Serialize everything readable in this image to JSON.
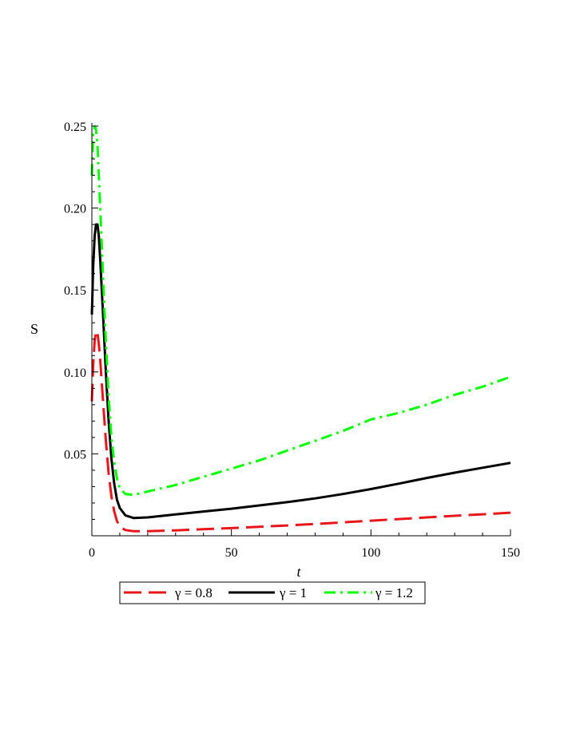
{
  "chart_data": {
    "type": "line",
    "title": "",
    "xlabel": "t",
    "ylabel": "S",
    "xlim": [
      0,
      150
    ],
    "ylim": [
      0,
      0.25
    ],
    "xticks": [
      0,
      50,
      100,
      150
    ],
    "xtick_labels": [
      "0",
      "50",
      "100",
      "150"
    ],
    "yticks": [
      0.05,
      0.1,
      0.15,
      0.2,
      0.25
    ],
    "ytick_labels": [
      "0.05",
      "0.10",
      "0.15",
      "0.20",
      "0.25"
    ],
    "grid": false,
    "legend_position": "bottom",
    "series": [
      {
        "name": "γ = 0.8",
        "color": "#e8161b",
        "dash": "dashed",
        "x": [
          0,
          0.5,
          1,
          1.5,
          2,
          2.5,
          3,
          4,
          5,
          6,
          7,
          8,
          9,
          10,
          12,
          15,
          20,
          30,
          40,
          50,
          60,
          70,
          80,
          90,
          100,
          110,
          120,
          130,
          140,
          150
        ],
        "y": [
          0.082,
          0.105,
          0.119,
          0.125,
          0.124,
          0.117,
          0.107,
          0.082,
          0.058,
          0.038,
          0.024,
          0.015,
          0.009,
          0.0055,
          0.0035,
          0.0028,
          0.0028,
          0.0033,
          0.004,
          0.0047,
          0.0055,
          0.0063,
          0.0072,
          0.0082,
          0.0092,
          0.0102,
          0.0112,
          0.0122,
          0.0131,
          0.0141
        ]
      },
      {
        "name": "γ = 1",
        "color": "#000000",
        "dash": "solid",
        "x": [
          0,
          0.5,
          1,
          1.5,
          2,
          2.5,
          3,
          4,
          5,
          6,
          7,
          8,
          9,
          10,
          12,
          15,
          20,
          30,
          40,
          50,
          60,
          70,
          80,
          90,
          100,
          110,
          120,
          130,
          140,
          150
        ],
        "y": [
          0.135,
          0.165,
          0.183,
          0.19,
          0.19,
          0.183,
          0.168,
          0.135,
          0.1,
          0.07,
          0.047,
          0.032,
          0.022,
          0.017,
          0.0125,
          0.0108,
          0.0112,
          0.013,
          0.0148,
          0.0165,
          0.0185,
          0.0205,
          0.0228,
          0.0255,
          0.0285,
          0.0318,
          0.0353,
          0.0385,
          0.0415,
          0.0445
        ]
      },
      {
        "name": "γ = 1.2",
        "color": "#00ff00",
        "dash": "dashdot",
        "x": [
          0,
          0.5,
          1,
          1.5,
          2,
          2.5,
          3,
          4,
          5,
          6,
          7,
          8,
          9,
          10,
          12,
          15,
          20,
          30,
          40,
          50,
          60,
          70,
          80,
          90,
          100,
          110,
          120,
          130,
          140,
          150
        ],
        "y": [
          0.22,
          0.245,
          0.25,
          0.248,
          0.238,
          0.22,
          0.2,
          0.158,
          0.118,
          0.085,
          0.06,
          0.045,
          0.035,
          0.029,
          0.0255,
          0.025,
          0.027,
          0.031,
          0.036,
          0.041,
          0.046,
          0.052,
          0.058,
          0.064,
          0.071,
          0.075,
          0.08,
          0.086,
          0.091,
          0.097
        ]
      }
    ]
  }
}
